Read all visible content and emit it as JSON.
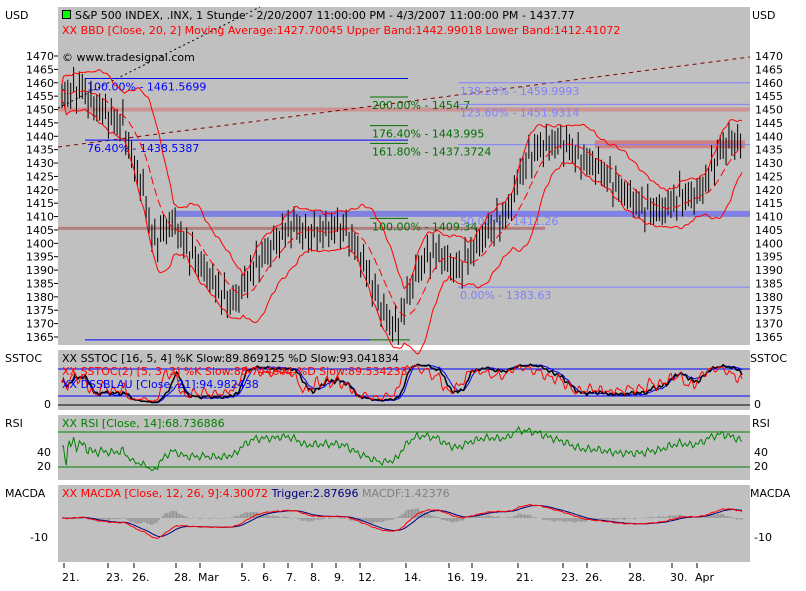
{
  "main": {
    "unit": "USD",
    "title": "S&P 500 INDEX, .INX, 1 Stunde - 2/20/2007 11:00:00 PM - 4/3/2007 11:00:00 PM - 1437.77",
    "bbd": "XX BBD [Close, 20, 2] Moving Average:1427.70045 Upper Band:1442.99018 Lower Band:1412.41072",
    "copyright": "© www.tradesignal.com",
    "fib": [
      {
        "label": "100.00% - 1461.5699",
        "value": 1461.57,
        "color": "#0000ff"
      },
      {
        "label": "76.40% - 1438.5387",
        "value": 1438.54,
        "color": "#0000ff"
      },
      {
        "label": "200.00% - 1454.7",
        "value": 1454.7,
        "color": "#007000"
      },
      {
        "label": "176.40% - 1443.995",
        "value": 1443.995,
        "color": "#007000"
      },
      {
        "label": "161.80% - 1437.3724",
        "value": 1437.37,
        "color": "#007000"
      },
      {
        "label": "100.00% - 1409.34",
        "value": 1409.34,
        "color": "#007000"
      },
      {
        "label": "138.20% - 1459.9993",
        "value": 1459.9993,
        "color": "#8080ff"
      },
      {
        "label": "123.60% - 1451.9314",
        "value": 1451.93,
        "color": "#8080ff"
      },
      {
        "label": "50.00% - 1411.26",
        "value": 1411.26,
        "color": "#8080ff"
      },
      {
        "label": "0.00% - 1383.63",
        "value": 1383.63,
        "color": "#8080ff"
      }
    ]
  },
  "sstoc": {
    "label": "SSTOC",
    "l1": "XX SSTOC [16, 5, 4] %K Slow:89.869125 %D Slow:93.041834",
    "l2": "XX SSTOC(2) [5, 3, 3] %K Slow:88.744644 %D Slow:89.534233",
    "l3": "XX DSSBLAU [Close, 21]:94.982438",
    "tick": "0"
  },
  "rsi": {
    "label": "RSI",
    "l1": "XX RSI [Close, 14]:68.736886",
    "ticks": [
      "40",
      "20"
    ]
  },
  "macd": {
    "label": "MACDA",
    "l1": "XX MACDA [Close, 12, 26, 9]:4.30072",
    "l2": "Trigger:2.87696",
    "l3": "MACDF:1.42376",
    "tick": "-10"
  },
  "colors": {
    "panel": "#c0c0c0",
    "bands": "#ff0000",
    "fib": "#0000ff",
    "rsi": "#008000"
  },
  "chart_data": {
    "type": "ohlc",
    "yaxis": {
      "unit": "USD",
      "ylim": [
        1362,
        1474
      ],
      "ticks": [
        1365,
        1370,
        1375,
        1380,
        1385,
        1390,
        1395,
        1400,
        1405,
        1410,
        1415,
        1420,
        1425,
        1430,
        1435,
        1440,
        1445,
        1450,
        1455,
        1460,
        1465,
        1470
      ]
    },
    "x_ticks": [
      "21.",
      "23.",
      "26.",
      "28.",
      "Mar",
      "5.",
      "6.",
      "7.",
      "8.",
      "9.",
      "12.",
      "14.",
      "16.",
      "19.",
      "21.",
      "23.",
      "26.",
      "28.",
      "30.",
      "Apr"
    ],
    "close_approx": [
      1455,
      1457,
      1458,
      1452,
      1450,
      1446,
      1445,
      1430,
      1420,
      1400,
      1405,
      1408,
      1400,
      1395,
      1390,
      1385,
      1380,
      1378,
      1385,
      1392,
      1396,
      1400,
      1405,
      1407,
      1403,
      1404,
      1405,
      1406,
      1405,
      1398,
      1390,
      1380,
      1372,
      1368,
      1380,
      1390,
      1395,
      1397,
      1393,
      1390,
      1395,
      1400,
      1405,
      1408,
      1412,
      1425,
      1432,
      1436,
      1437,
      1438,
      1436,
      1432,
      1430,
      1428,
      1424,
      1420,
      1417,
      1414,
      1413,
      1412,
      1415,
      1418,
      1417,
      1420,
      1428,
      1436,
      1438,
      1437.77
    ]
  }
}
